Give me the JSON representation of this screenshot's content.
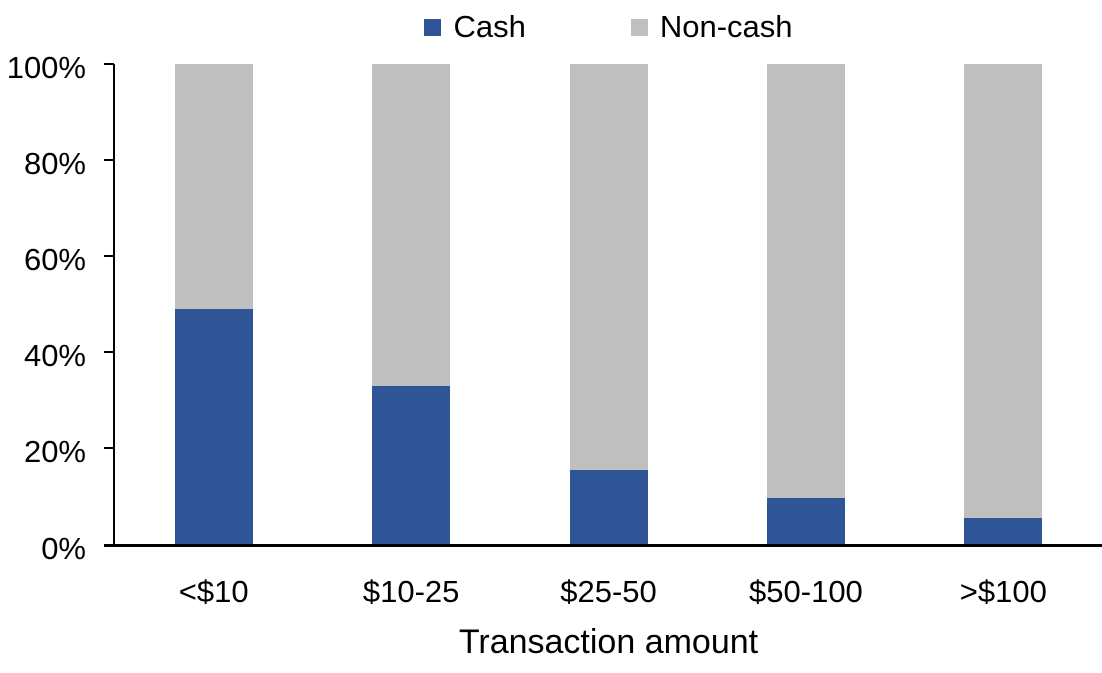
{
  "chart_data": {
    "type": "bar",
    "variant": "stacked-100-percent",
    "title": "",
    "xlabel": "Transaction amount",
    "ylabel": "",
    "categories": [
      "<$10",
      "$10-25",
      "$25-50",
      "$50-100",
      ">$100"
    ],
    "series": [
      {
        "name": "Cash",
        "color": "#2F5597",
        "values": [
          49,
          33,
          15.5,
          9.5,
          5.5
        ]
      },
      {
        "name": "Non-cash",
        "color": "#BFBFBF",
        "values": [
          51,
          67,
          84.5,
          90.5,
          94.5
        ]
      }
    ],
    "ylim": [
      0,
      100
    ],
    "y_tick_labels": [
      "100%",
      "80%",
      "60%",
      "40%",
      "20%",
      "0%"
    ],
    "grid": false,
    "legend_position": "top-center",
    "axis_color": "#000000"
  }
}
